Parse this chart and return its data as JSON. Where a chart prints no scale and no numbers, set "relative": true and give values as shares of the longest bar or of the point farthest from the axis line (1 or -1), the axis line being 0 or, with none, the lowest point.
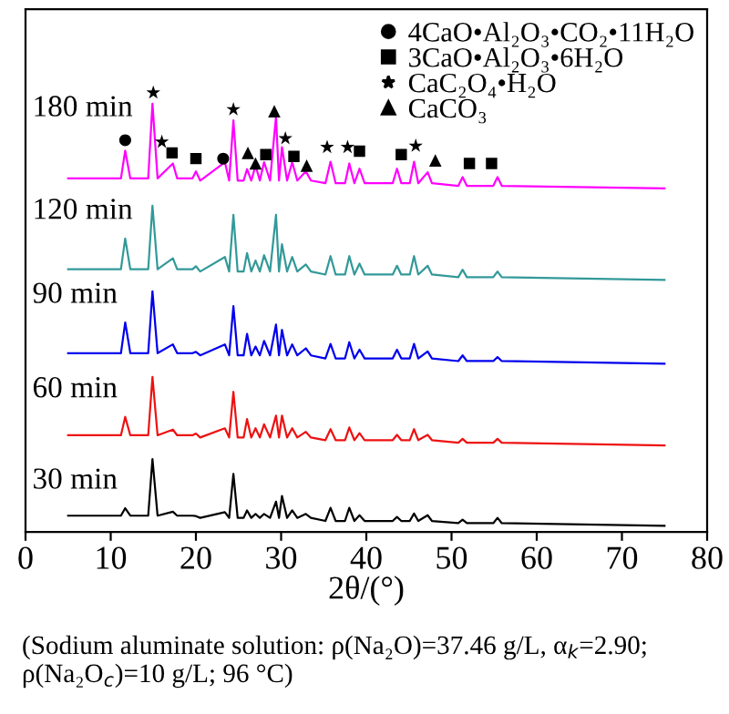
{
  "chart_data": {
    "type": "line",
    "relative": true,
    "xlabel": "2θ/(°)",
    "xlim": [
      0,
      80
    ],
    "xticks": [
      0,
      10,
      20,
      30,
      40,
      50,
      60,
      70,
      80
    ],
    "grid": false,
    "legend": "top right",
    "line_style": "solid",
    "marker": "none",
    "x": [
      5,
      11.2,
      11.7,
      12.3,
      14.4,
      14.9,
      15.5,
      17.3,
      17.8,
      19.6,
      20.0,
      20.5,
      23.4,
      23.9,
      24.4,
      24.9,
      25.6,
      26.0,
      26.5,
      27.0,
      27.5,
      28.0,
      28.7,
      29.4,
      29.75,
      30.1,
      30.7,
      31.3,
      31.9,
      32.9,
      33.5,
      35.2,
      35.8,
      36.4,
      37.5,
      38.0,
      38.6,
      39.2,
      39.8,
      43.1,
      43.6,
      44.1,
      45.1,
      45.6,
      46.1,
      47.2,
      47.7,
      50.8,
      51.3,
      51.8,
      54.9,
      55.4,
      55.9,
      75
    ],
    "series": [
      {
        "name": "180 min",
        "color": "#ff00ff",
        "values": [
          0.805,
          0.805,
          0.868,
          0.805,
          0.805,
          0.975,
          0.805,
          0.839,
          0.805,
          0.805,
          0.821,
          0.8,
          0.842,
          0.8,
          0.937,
          0.8,
          0.8,
          0.826,
          0.8,
          0.834,
          0.8,
          0.842,
          0.8,
          0.946,
          0.8,
          0.876,
          0.8,
          0.842,
          0.8,
          0.821,
          0.8,
          0.794,
          0.843,
          0.794,
          0.794,
          0.839,
          0.794,
          0.827,
          0.794,
          0.794,
          0.827,
          0.794,
          0.794,
          0.843,
          0.794,
          0.819,
          0.794,
          0.788,
          0.808,
          0.788,
          0.788,
          0.808,
          0.788,
          0.782
        ]
      },
      {
        "name": "120 min",
        "color": "#339999",
        "values": [
          0.598,
          0.598,
          0.668,
          0.598,
          0.598,
          0.743,
          0.598,
          0.623,
          0.598,
          0.598,
          0.605,
          0.593,
          0.626,
          0.593,
          0.722,
          0.593,
          0.593,
          0.635,
          0.593,
          0.618,
          0.593,
          0.63,
          0.593,
          0.722,
          0.593,
          0.655,
          0.593,
          0.626,
          0.593,
          0.609,
          0.593,
          0.586,
          0.628,
          0.586,
          0.586,
          0.628,
          0.586,
          0.611,
          0.586,
          0.586,
          0.606,
          0.586,
          0.586,
          0.628,
          0.586,
          0.606,
          0.586,
          0.58,
          0.597,
          0.58,
          0.58,
          0.593,
          0.58,
          0.574
        ]
      },
      {
        "name": "90 min",
        "color": "#0000ee",
        "values": [
          0.407,
          0.407,
          0.477,
          0.407,
          0.407,
          0.548,
          0.407,
          0.427,
          0.407,
          0.407,
          0.41,
          0.402,
          0.427,
          0.402,
          0.514,
          0.402,
          0.402,
          0.451,
          0.402,
          0.422,
          0.402,
          0.435,
          0.402,
          0.472,
          0.402,
          0.46,
          0.402,
          0.427,
          0.402,
          0.418,
          0.402,
          0.395,
          0.428,
          0.395,
          0.395,
          0.432,
          0.395,
          0.415,
          0.395,
          0.395,
          0.415,
          0.395,
          0.395,
          0.428,
          0.395,
          0.411,
          0.395,
          0.389,
          0.402,
          0.389,
          0.389,
          0.398,
          0.389,
          0.383
        ]
      },
      {
        "name": "60 min",
        "color": "#ee1111",
        "values": [
          0.22,
          0.22,
          0.262,
          0.22,
          0.22,
          0.353,
          0.22,
          0.233,
          0.22,
          0.22,
          0.224,
          0.215,
          0.236,
          0.215,
          0.319,
          0.215,
          0.215,
          0.257,
          0.215,
          0.236,
          0.215,
          0.245,
          0.215,
          0.265,
          0.215,
          0.265,
          0.215,
          0.236,
          0.215,
          0.228,
          0.215,
          0.209,
          0.234,
          0.209,
          0.209,
          0.238,
          0.209,
          0.225,
          0.209,
          0.209,
          0.221,
          0.209,
          0.209,
          0.234,
          0.209,
          0.221,
          0.209,
          0.203,
          0.212,
          0.203,
          0.203,
          0.212,
          0.203,
          0.197
        ]
      },
      {
        "name": "30 min",
        "color": "#000000",
        "values": [
          0.037,
          0.037,
          0.054,
          0.037,
          0.037,
          0.166,
          0.037,
          0.046,
          0.037,
          0.037,
          0.036,
          0.032,
          0.045,
          0.032,
          0.132,
          0.032,
          0.032,
          0.049,
          0.032,
          0.041,
          0.032,
          0.041,
          0.032,
          0.069,
          0.032,
          0.082,
          0.032,
          0.049,
          0.032,
          0.041,
          0.032,
          0.025,
          0.055,
          0.025,
          0.025,
          0.055,
          0.025,
          0.038,
          0.025,
          0.025,
          0.034,
          0.025,
          0.025,
          0.042,
          0.025,
          0.038,
          0.025,
          0.02,
          0.028,
          0.02,
          0.02,
          0.032,
          0.02,
          0.014
        ]
      },
      {
        "name": "4CaO•Al₂O₃•CO₂•11H₂O",
        "type": "scatter",
        "marker": "circle",
        "color": "#000000",
        "x": [
          11.7,
          23.2
        ],
        "values": [
          0.892,
          0.85
        ]
      },
      {
        "name": "3CaO•Al₂O₃•6H₂O",
        "type": "scatter",
        "marker": "square",
        "color": "#000000",
        "x": [
          17.2,
          20.0,
          28.2,
          31.5,
          39.2,
          44.1,
          52.1,
          54.7
        ],
        "values": [
          0.863,
          0.85,
          0.859,
          0.855,
          0.867,
          0.859,
          0.839,
          0.839
        ]
      },
      {
        "name": "CaC₂O₄•H₂O",
        "type": "scatter",
        "marker": "star",
        "color": "#000000",
        "x": [
          15.0,
          16.0,
          24.4,
          30.5,
          35.4,
          37.8,
          45.8
        ],
        "values": [
          1.0,
          0.888,
          0.962,
          0.896,
          0.876,
          0.876,
          0.879
        ]
      },
      {
        "name": "CaCO₃",
        "type": "scatter",
        "marker": "triangle",
        "color": "#000000",
        "x": [
          26.1,
          27.0,
          29.2,
          33.0,
          48.1
        ],
        "values": [
          0.863,
          0.839,
          0.958,
          0.834,
          0.846
        ]
      }
    ],
    "annotations": [
      "(Sodium aluminate solution: ρ(Na₂O)=37.46 g/L, α$_{k}$=2.90; ρ(Na₂O$_{c}$)=10 g/L; 96 °C)"
    ]
  }
}
